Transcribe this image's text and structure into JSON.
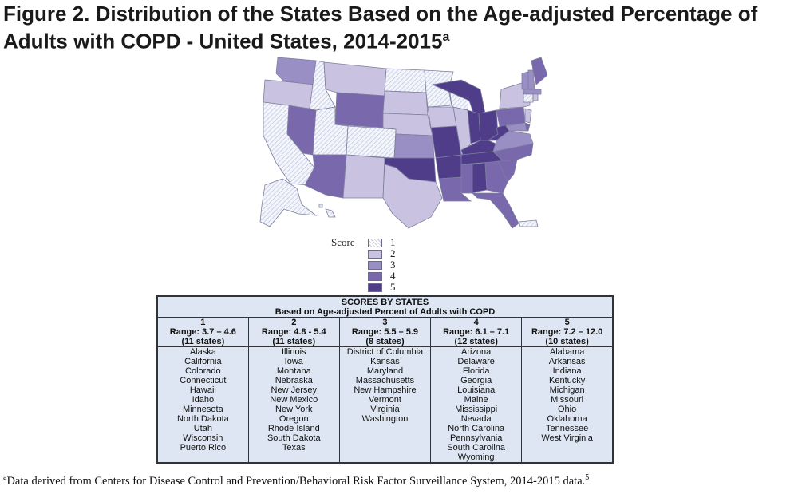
{
  "title": {
    "line1": "Figure 2.  Distribution of the States Based on the Age-adjusted Percentage of",
    "line2": "Adults with COPD - United States, 2014-2015",
    "superscript": "a"
  },
  "legend": {
    "label": "Score",
    "items": [
      {
        "value": "1",
        "color": "#eef0f8",
        "pattern": "hatched"
      },
      {
        "value": "2",
        "color": "#c9c2e0"
      },
      {
        "value": "3",
        "color": "#9a8fc4"
      },
      {
        "value": "4",
        "color": "#7a68ad"
      },
      {
        "value": "5",
        "color": "#4f3d8a"
      }
    ]
  },
  "table": {
    "heading1": "SCORES BY STATES",
    "heading2": "Based on Age-adjusted Percent of Adults with COPD",
    "columns": [
      {
        "score": "1",
        "range": "Range: 3.7 – 4.6",
        "count": "(11 states)",
        "states": [
          "Alaska",
          "California",
          "Colorado",
          "Connecticut",
          "Hawaii",
          "Idaho",
          "Minnesota",
          "North Dakota",
          "Utah",
          "Wisconsin",
          "Puerto Rico"
        ]
      },
      {
        "score": "2",
        "range": "Range: 4.8 - 5.4",
        "count": "(11 states)",
        "states": [
          "Illinois",
          "Iowa",
          "Montana",
          "Nebraska",
          "New Jersey",
          "New Mexico",
          "New York",
          "Oregon",
          "Rhode Island",
          "South Dakota",
          "Texas"
        ]
      },
      {
        "score": "3",
        "range": "Range: 5.5 – 5.9",
        "count": "(8 states)",
        "states": [
          "District of Columbia",
          "Kansas",
          "Maryland",
          "Massachusetts",
          "New Hampshire",
          "Vermont",
          "Virginia",
          "Washington"
        ]
      },
      {
        "score": "4",
        "range": "Range: 6.1 – 7.1",
        "count": "(12 states)",
        "states": [
          "Arizona",
          "Delaware",
          "Florida",
          "Georgia",
          "Louisiana",
          "Maine",
          "Mississippi",
          "Nevada",
          "North Carolina",
          "Pennsylvania",
          "South Carolina",
          "Wyoming"
        ]
      },
      {
        "score": "5",
        "range": "Range: 7.2 – 12.0",
        "count": "(10 states)",
        "states": [
          "Alabama",
          "Arkansas",
          "Indiana",
          "Kentucky",
          "Michigan",
          "Missouri",
          "Ohio",
          "Oklahoma",
          "Tennessee",
          "West Virginia"
        ]
      }
    ]
  },
  "footnote": {
    "marker": "a",
    "text": "Data derived from Centers for Disease Control and Prevention/Behavioral Risk Factor Surveillance System, 2014-2015 data.",
    "ref": "5"
  }
}
